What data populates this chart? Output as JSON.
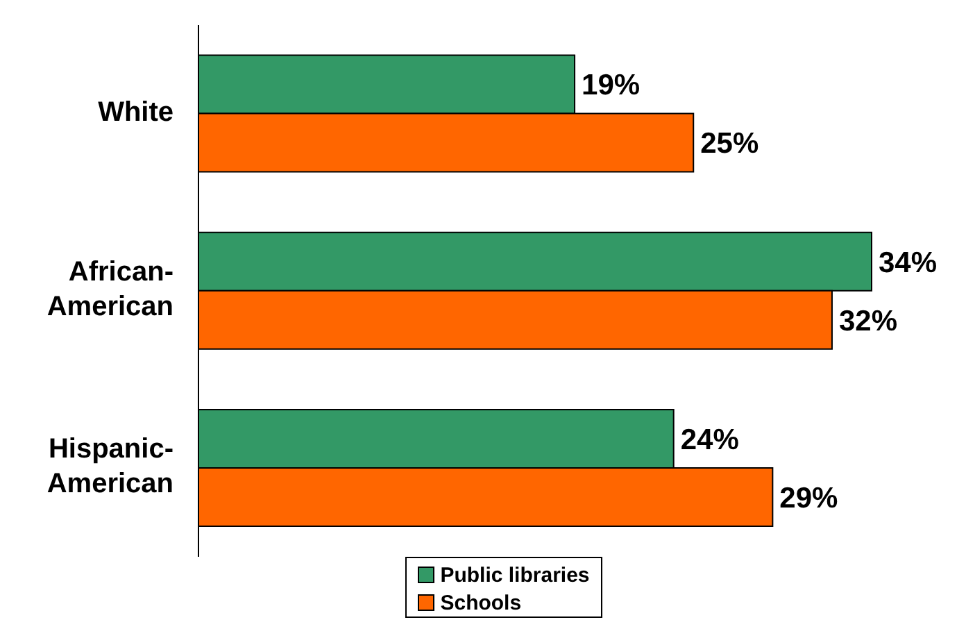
{
  "chart_data": {
    "type": "bar",
    "orientation": "horizontal",
    "categories": [
      "White",
      "African-American",
      "Hispanic-American"
    ],
    "series": [
      {
        "name": "Public libraries",
        "color": "#339966",
        "values": [
          19,
          34,
          24
        ],
        "value_labels": [
          "19%",
          "34%",
          "24%"
        ]
      },
      {
        "name": "Schools",
        "color": "#ff6600",
        "values": [
          25,
          32,
          29
        ],
        "value_labels": [
          "25%",
          "32%",
          "29%"
        ]
      }
    ],
    "legend": "bottom",
    "grid": false
  }
}
